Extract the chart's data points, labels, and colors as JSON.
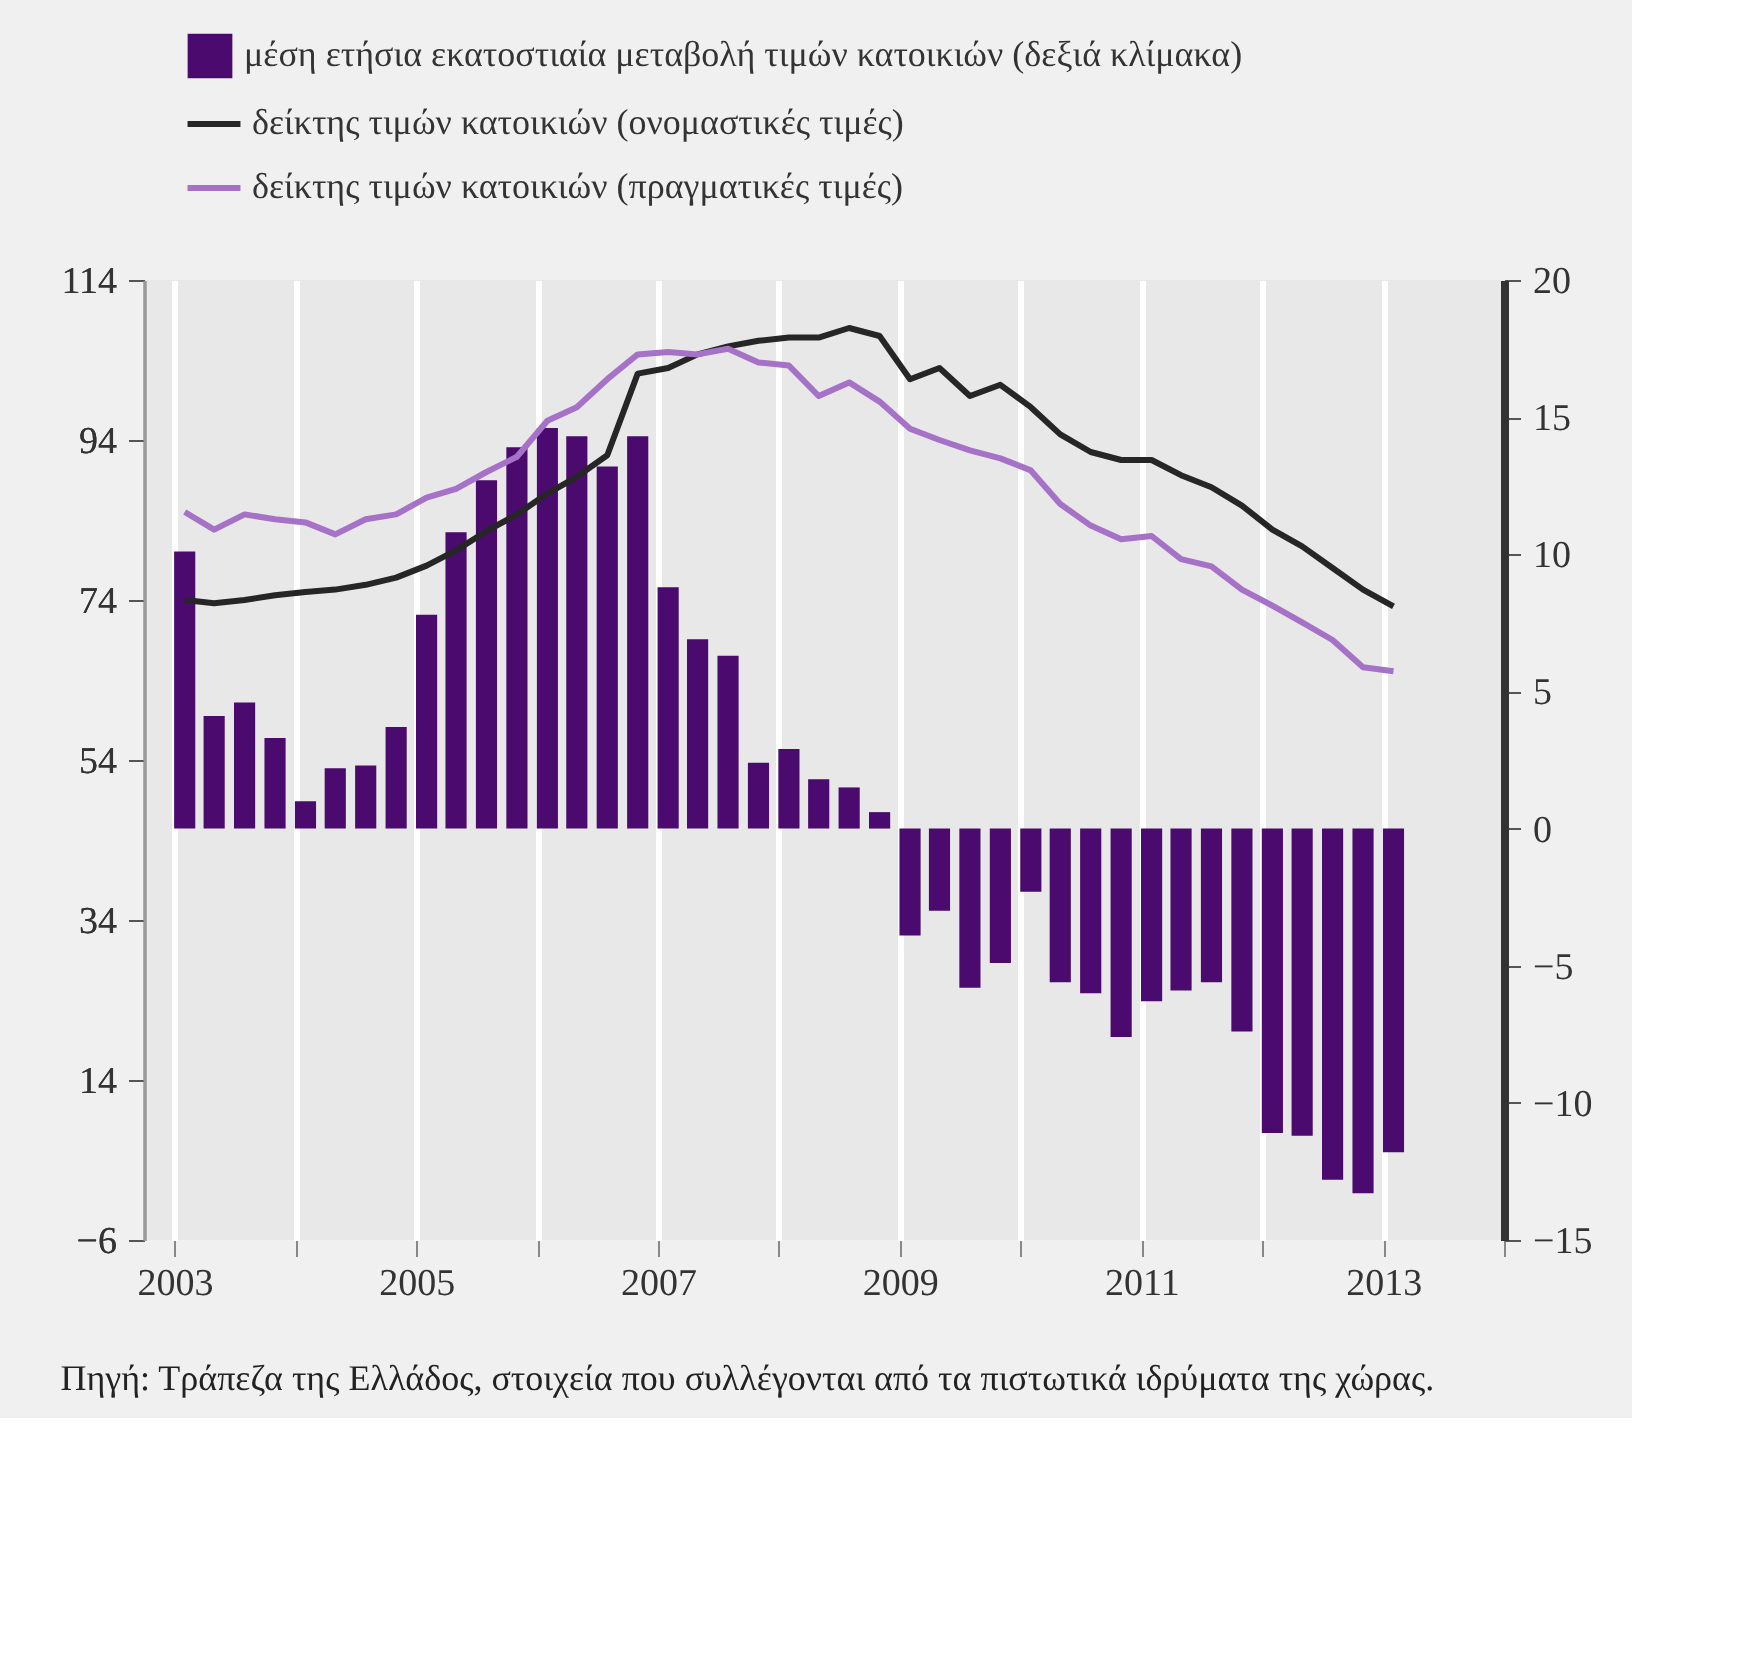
{
  "chart_data": {
    "type": "bar",
    "x": [
      "2003-02",
      "2003-05",
      "2003-08",
      "2003-11",
      "2004-02",
      "2004-05",
      "2004-08",
      "2004-11",
      "2005-02",
      "2005-05",
      "2005-08",
      "2005-11",
      "2006-02",
      "2006-05",
      "2006-08",
      "2006-11",
      "2007-02",
      "2007-05",
      "2007-08",
      "2007-11",
      "2008-02",
      "2008-05",
      "2008-08",
      "2008-11",
      "2009-02",
      "2009-05",
      "2009-08",
      "2009-11",
      "2010-02",
      "2010-05",
      "2010-08",
      "2010-11",
      "2011-02",
      "2011-05",
      "2011-08",
      "2011-11",
      "2012-02",
      "2012-05",
      "2012-08",
      "2012-11",
      "2013-02"
    ],
    "series": [
      {
        "name": "μέση ετήσια εκατοστιαία μεταβολή τιμών κατοικιών (δεξιά κλίμακα)",
        "axis": "y2",
        "color": "#4b0a6e",
        "values": [
          10.1,
          4.1,
          4.6,
          3.3,
          1.0,
          2.2,
          2.3,
          3.7,
          7.8,
          10.8,
          12.7,
          13.9,
          14.6,
          14.3,
          13.2,
          14.3,
          8.8,
          6.9,
          6.3,
          2.4,
          2.9,
          1.8,
          1.5,
          0.6,
          -3.9,
          -3.0,
          -5.8,
          -4.9,
          -2.3,
          -5.6,
          -6.0,
          -7.6,
          -6.3,
          -5.9,
          -5.6,
          -7.4,
          -11.1,
          -11.2,
          -12.8,
          -13.3,
          -11.8
        ]
      },
      {
        "name": "δείκτης τιμών κατοικιών (ονομαστικές τιμές)",
        "type": "line",
        "axis": "y",
        "color": "#262626",
        "values": [
          74,
          73.6,
          74,
          74.6,
          75,
          75.3,
          75.9,
          76.8,
          78.3,
          80.2,
          82.6,
          84.7,
          87.3,
          89.4,
          92.1,
          102.3,
          103,
          104.7,
          105.7,
          106.4,
          106.8,
          106.8,
          108,
          107,
          101.6,
          103,
          99.5,
          100.9,
          98.1,
          94.7,
          92.5,
          91.5,
          91.5,
          89.6,
          88.1,
          85.8,
          82.8,
          80.7,
          78,
          75.3,
          73.2
        ]
      },
      {
        "name": "δείκτης τιμών κατοικιών (πραγματικές τιμές)",
        "type": "line",
        "axis": "y",
        "color": "#a572c8",
        "values": [
          85,
          82.8,
          84.7,
          84.1,
          83.7,
          82.2,
          84.1,
          84.7,
          86.8,
          87.9,
          90,
          91.9,
          96.4,
          98.1,
          101.6,
          104.7,
          105,
          104.7,
          105.4,
          103.7,
          103.3,
          99.5,
          101.2,
          98.8,
          95.4,
          94,
          92.7,
          91.7,
          90.2,
          86,
          83.3,
          81.6,
          82,
          79.1,
          78.2,
          75.3,
          73.3,
          71.2,
          69,
          65.6,
          65.1
        ]
      }
    ],
    "xlim": [
      "2002-10-01",
      "2014-01-01"
    ],
    "xticks": [
      {
        "value": "2003",
        "label": "2003"
      },
      {
        "value": "2004",
        "label": null
      },
      {
        "value": "2005",
        "label": "2005"
      },
      {
        "value": "2006",
        "label": null
      },
      {
        "value": "2007",
        "label": "2007"
      },
      {
        "value": "2008",
        "label": null
      },
      {
        "value": "2009",
        "label": "2009"
      },
      {
        "value": "2010",
        "label": null
      },
      {
        "value": "2011",
        "label": "2011"
      },
      {
        "value": "2012",
        "label": null
      },
      {
        "value": "2013",
        "label": "2013"
      },
      {
        "value": "2014",
        "label": null
      }
    ],
    "ylim": [
      -6,
      114
    ],
    "yticks": [
      -6,
      14,
      34,
      54,
      74,
      94,
      114
    ],
    "y2lim": [
      -15,
      20
    ],
    "y2ticks": [
      -15,
      -10,
      -5,
      0,
      5,
      10,
      15,
      20
    ],
    "grid": "x",
    "legend": "top left",
    "annotations": [
      "Πηγή: Τράπεζα της Ελλάδος, στοιχεία που συλλέγονται από τα πιστωτικά ιδρύματα της χώρας."
    ]
  }
}
